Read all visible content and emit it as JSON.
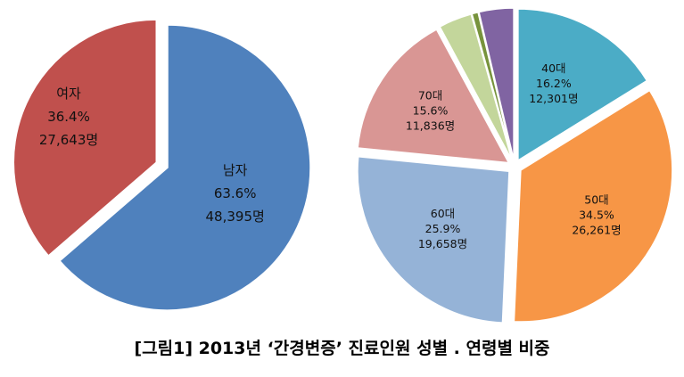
{
  "caption": "[그림1]  2013년 ‘간경변증’ 진료인원 성별 . 연령별 비중",
  "chart_data": [
    {
      "type": "pie",
      "slices": [
        {
          "label": "남자",
          "percent_label": "63.6%",
          "count_label": "48,395명",
          "value": 48395,
          "color": "#4F81BD"
        },
        {
          "label": "여자",
          "percent_label": "36.4%",
          "count_label": "27,643명",
          "value": 27643,
          "color": "#C0504D"
        }
      ]
    },
    {
      "type": "pie",
      "slices": [
        {
          "label": "40대",
          "percent_label": "16.2%",
          "count_label": "12,301명",
          "value": 12301,
          "color": "#4BACC6"
        },
        {
          "label": "50대",
          "percent_label": "34.5%",
          "count_label": "26,261명",
          "value": 26261,
          "color": "#F79646"
        },
        {
          "label": "60대",
          "percent_label": "25.9%",
          "count_label": "19,658명",
          "value": 19658,
          "color": "#95B3D7"
        },
        {
          "label": "70대",
          "percent_label": "15.6%",
          "count_label": "11,836명",
          "value": 11836,
          "color": "#D99694"
        },
        {
          "label": "",
          "percent_label": "",
          "count_label": "",
          "value": 2700,
          "color": "#C3D69B"
        },
        {
          "label": "",
          "percent_label": "",
          "count_label": "",
          "value": 500,
          "color": "#77933C"
        },
        {
          "label": "",
          "percent_label": "",
          "count_label": "",
          "value": 2800,
          "color": "#8064A2"
        }
      ]
    }
  ]
}
